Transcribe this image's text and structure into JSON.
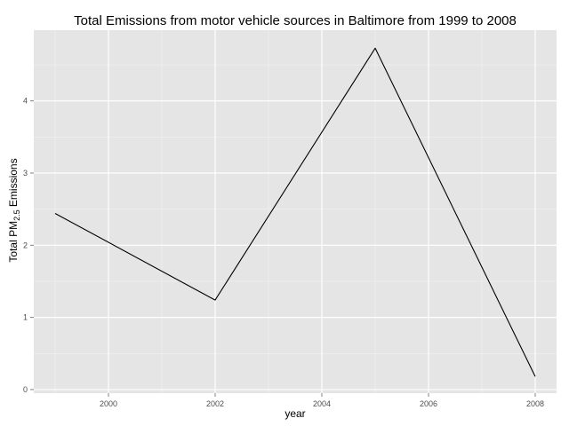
{
  "chart_data": {
    "type": "line",
    "title": "Total Emissions from motor vehicle sources in Baltimore from 1999 to 2008",
    "xlabel": "year",
    "ylabel": {
      "prefix": "Total PM",
      "subscript": "2.5",
      "suffix": " Emissions"
    },
    "x": [
      1999,
      2002,
      2005,
      2008
    ],
    "series": [
      {
        "values": [
          2.44,
          1.24,
          4.73,
          0.18
        ]
      }
    ],
    "xlim": [
      1998.6,
      2008.4
    ],
    "ylim": [
      -0.05,
      4.98
    ],
    "x_ticks": [
      2000,
      2002,
      2004,
      2006,
      2008
    ],
    "x_tick_labels": [
      "2000",
      "2002",
      "2004",
      "2006",
      "2008"
    ],
    "y_ticks": [
      0,
      1,
      2,
      3,
      4
    ],
    "y_tick_labels": [
      "0",
      "1",
      "2",
      "3",
      "4"
    ],
    "grid": true,
    "legend": "none",
    "colors": {
      "panel_background": "#e5e5e5",
      "grid_major": "#ffffff",
      "grid_minor": "#f2f2f2",
      "line": "#000000",
      "tick_text": "#4d4d4d"
    }
  }
}
